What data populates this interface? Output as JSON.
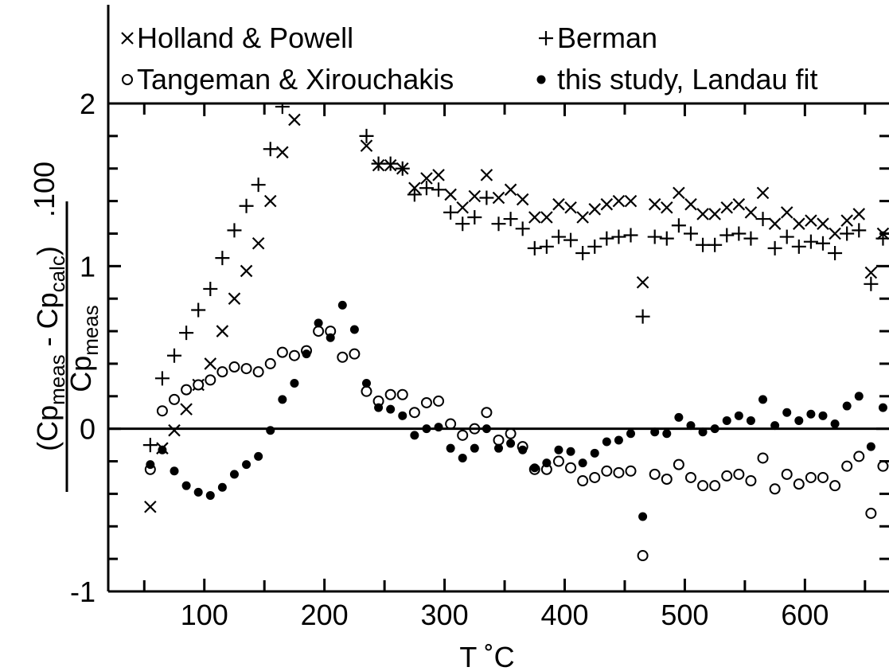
{
  "chart_data": {
    "type": "scatter",
    "xlabel": "T ˚C",
    "ylabel": {
      "numerator_base1": "(Cp",
      "numerator_sub1": "meas",
      "numerator_mid": " - Cp",
      "numerator_sub2": "calc",
      "numerator_close": ")",
      "multiplier": ".100",
      "denominator_base": "Cp",
      "denominator_sub": "meas"
    },
    "xlim": [
      20,
      670
    ],
    "ylim": [
      -1,
      2
    ],
    "xticks": [
      100,
      200,
      300,
      400,
      500,
      600
    ],
    "xtick_labels": [
      "100",
      "200",
      "300",
      "400",
      "500",
      "600"
    ],
    "yticks": [
      -1,
      0,
      1,
      2
    ],
    "ytick_labels": [
      "-1",
      "0",
      "1",
      "2"
    ],
    "zero_line": true,
    "legend_position": "top",
    "series": [
      {
        "name": "Holland & Powell",
        "marker": "x",
        "x": [
          55,
          65,
          75,
          85,
          95,
          105,
          115,
          125,
          135,
          145,
          155,
          165,
          175,
          235,
          245,
          255,
          265,
          275,
          285,
          295,
          305,
          315,
          325,
          335,
          345,
          355,
          365,
          375,
          385,
          395,
          405,
          415,
          425,
          435,
          445,
          455,
          465,
          475,
          485,
          495,
          505,
          515,
          525,
          535,
          545,
          555,
          565,
          575,
          585,
          595,
          605,
          615,
          625,
          635,
          645,
          655,
          665
        ],
        "y": [
          -0.48,
          -0.12,
          -0.01,
          0.12,
          0.27,
          0.4,
          0.6,
          0.8,
          0.97,
          1.14,
          1.4,
          1.7,
          1.9,
          1.74,
          1.62,
          1.62,
          1.6,
          1.48,
          1.54,
          1.56,
          1.44,
          1.36,
          1.43,
          1.56,
          1.42,
          1.47,
          1.41,
          1.3,
          1.3,
          1.38,
          1.36,
          1.3,
          1.35,
          1.38,
          1.4,
          1.4,
          0.9,
          1.38,
          1.36,
          1.45,
          1.38,
          1.32,
          1.32,
          1.36,
          1.38,
          1.33,
          1.45,
          1.26,
          1.33,
          1.26,
          1.28,
          1.26,
          1.2,
          1.28,
          1.32,
          0.96,
          1.2
        ]
      },
      {
        "name": "Berman",
        "marker": "plus",
        "x": [
          55,
          65,
          75,
          85,
          95,
          105,
          115,
          125,
          135,
          145,
          155,
          165,
          235,
          245,
          255,
          265,
          275,
          285,
          295,
          305,
          315,
          325,
          335,
          345,
          355,
          365,
          375,
          385,
          395,
          405,
          415,
          425,
          435,
          445,
          455,
          465,
          475,
          485,
          495,
          505,
          515,
          525,
          535,
          545,
          555,
          565,
          575,
          585,
          595,
          605,
          615,
          625,
          635,
          645,
          655,
          665
        ],
        "y": [
          -0.1,
          0.31,
          0.45,
          0.59,
          0.73,
          0.86,
          1.05,
          1.22,
          1.37,
          1.5,
          1.72,
          1.98,
          1.8,
          1.63,
          1.63,
          1.6,
          1.44,
          1.48,
          1.47,
          1.33,
          1.26,
          1.3,
          1.42,
          1.26,
          1.29,
          1.23,
          1.11,
          1.12,
          1.18,
          1.16,
          1.08,
          1.12,
          1.17,
          1.18,
          1.19,
          0.69,
          1.18,
          1.17,
          1.25,
          1.2,
          1.13,
          1.13,
          1.19,
          1.2,
          1.17,
          1.29,
          1.11,
          1.18,
          1.12,
          1.15,
          1.14,
          1.08,
          1.2,
          1.22,
          0.89,
          1.17
        ]
      },
      {
        "name": "Tangeman & Xirouchakis",
        "marker": "circle-open",
        "x": [
          55,
          65,
          75,
          85,
          95,
          105,
          115,
          125,
          135,
          145,
          155,
          165,
          175,
          185,
          195,
          205,
          215,
          225,
          235,
          245,
          255,
          265,
          275,
          285,
          295,
          305,
          315,
          325,
          335,
          345,
          355,
          365,
          375,
          385,
          395,
          405,
          415,
          425,
          435,
          445,
          455,
          465,
          475,
          485,
          495,
          505,
          515,
          525,
          535,
          545,
          555,
          565,
          575,
          585,
          595,
          605,
          615,
          625,
          635,
          645,
          655,
          665
        ],
        "y": [
          -0.25,
          0.11,
          0.18,
          0.24,
          0.27,
          0.3,
          0.35,
          0.38,
          0.37,
          0.35,
          0.4,
          0.47,
          0.45,
          0.48,
          0.6,
          0.6,
          0.44,
          0.46,
          0.23,
          0.17,
          0.21,
          0.21,
          0.1,
          0.16,
          0.17,
          0.03,
          -0.04,
          0.0,
          0.1,
          -0.07,
          -0.03,
          -0.11,
          -0.25,
          -0.25,
          -0.2,
          -0.24,
          -0.32,
          -0.3,
          -0.26,
          -0.27,
          -0.26,
          -0.78,
          -0.28,
          -0.31,
          -0.22,
          -0.3,
          -0.35,
          -0.35,
          -0.29,
          -0.28,
          -0.32,
          -0.18,
          -0.37,
          -0.28,
          -0.34,
          -0.3,
          -0.3,
          -0.35,
          -0.23,
          -0.17,
          -0.52,
          -0.23
        ]
      },
      {
        "name": "this study, Landau fit",
        "marker": "circle-filled",
        "x": [
          55,
          65,
          75,
          85,
          95,
          105,
          115,
          125,
          135,
          145,
          155,
          165,
          175,
          185,
          195,
          205,
          215,
          225,
          235,
          245,
          255,
          265,
          275,
          285,
          295,
          305,
          315,
          325,
          335,
          345,
          355,
          365,
          375,
          385,
          395,
          405,
          415,
          425,
          435,
          445,
          455,
          465,
          475,
          485,
          495,
          505,
          515,
          525,
          535,
          545,
          555,
          565,
          575,
          585,
          595,
          605,
          615,
          625,
          635,
          645,
          655,
          665
        ],
        "y": [
          -0.22,
          -0.13,
          -0.26,
          -0.35,
          -0.39,
          -0.41,
          -0.36,
          -0.28,
          -0.22,
          -0.17,
          -0.01,
          0.18,
          0.28,
          0.46,
          0.65,
          0.56,
          0.76,
          0.61,
          0.28,
          0.13,
          0.12,
          0.08,
          -0.04,
          0.0,
          0.01,
          -0.12,
          -0.18,
          -0.12,
          0.0,
          -0.12,
          -0.09,
          -0.13,
          -0.24,
          -0.21,
          -0.13,
          -0.14,
          -0.21,
          -0.15,
          -0.08,
          -0.07,
          -0.03,
          -0.54,
          -0.02,
          -0.03,
          0.07,
          0.02,
          -0.02,
          0.0,
          0.05,
          0.08,
          0.05,
          0.18,
          0.02,
          0.1,
          0.05,
          0.09,
          0.08,
          0.03,
          0.14,
          0.2,
          -0.11,
          0.13
        ]
      }
    ]
  }
}
